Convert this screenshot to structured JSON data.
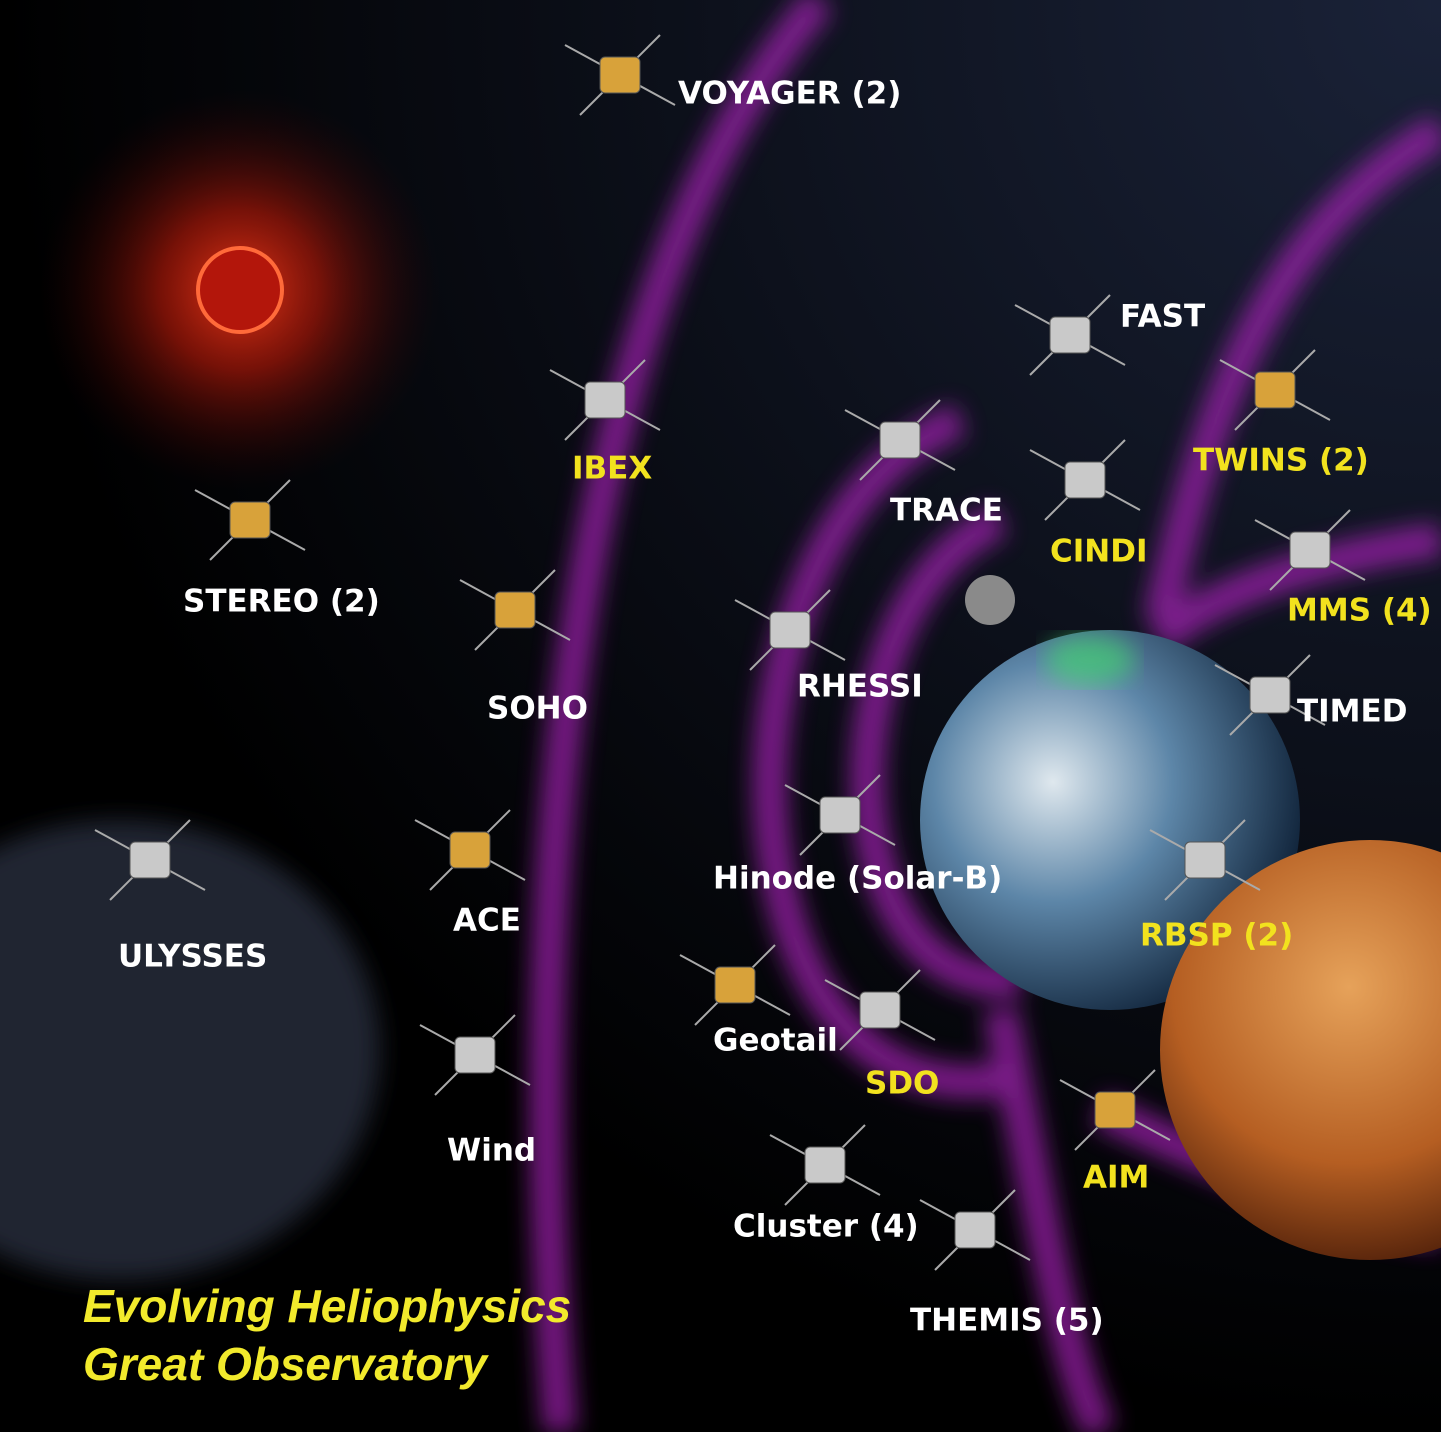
{
  "title": {
    "lines": [
      "Evolving Heliophysics",
      "Great Observatory"
    ]
  },
  "missions": [
    {
      "label": "VOYAGER (2)"
    },
    {
      "label": "FAST"
    },
    {
      "label": "IBEX"
    },
    {
      "label": "TWINS (2)"
    },
    {
      "label": "TRACE"
    },
    {
      "label": "CINDI"
    },
    {
      "label": "STEREO (2)"
    },
    {
      "label": "MMS (4)"
    },
    {
      "label": "RHESSI"
    },
    {
      "label": "SOHO"
    },
    {
      "label": "TIMED"
    },
    {
      "label": "Hinode (Solar-B)"
    },
    {
      "label": "ACE"
    },
    {
      "label": "RBSP (2)"
    },
    {
      "label": "ULYSSES"
    },
    {
      "label": "Geotail"
    },
    {
      "label": "SDO"
    },
    {
      "label": "Wind"
    },
    {
      "label": "AIM"
    },
    {
      "label": "Cluster (4)"
    },
    {
      "label": "THEMIS (5)"
    }
  ]
}
